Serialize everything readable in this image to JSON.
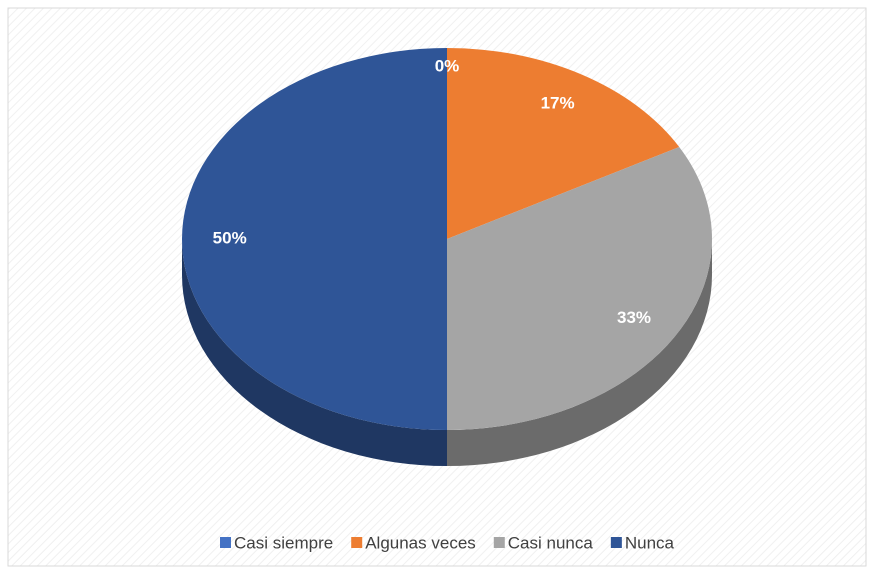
{
  "chart_data": {
    "type": "pie",
    "categories": [
      "Casi siempre",
      "Algunas veces",
      "Casi nunca",
      "Nunca"
    ],
    "values": [
      0,
      17,
      33,
      50
    ],
    "value_labels": [
      "0%",
      "17%",
      "33%",
      "50%"
    ],
    "colors": [
      "#4472c4",
      "#ed7d31",
      "#a5a5a5",
      "#2f5597"
    ],
    "legend": "bottom"
  }
}
